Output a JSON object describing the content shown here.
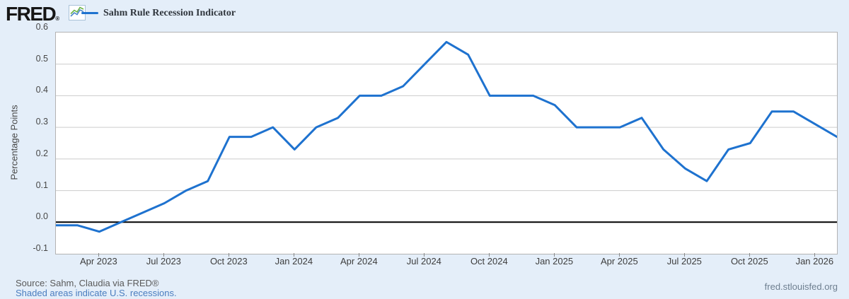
{
  "header": {
    "logo_text": "FRED",
    "logo_reg": "®",
    "legend_label": "Sahm Rule Recession Indicator"
  },
  "chart_data": {
    "type": "line",
    "title": "Sahm Rule Recession Indicator",
    "ylabel": "Percentage Points",
    "ylim": [
      -0.1,
      0.6
    ],
    "grid": "horizontal",
    "legend_position": "top-left",
    "series_color": "#1e72cf",
    "zero_line_color": "#000000",
    "categories": [
      "Feb 2023",
      "Mar 2023",
      "Apr 2023",
      "May 2023",
      "Jun 2023",
      "Jul 2023",
      "Aug 2023",
      "Sep 2023",
      "Oct 2023",
      "Nov 2023",
      "Dec 2023",
      "Jan 2024",
      "Feb 2024",
      "Mar 2024",
      "Apr 2024",
      "May 2024",
      "Jun 2024",
      "Jul 2024",
      "Aug 2024",
      "Sep 2024",
      "Oct 2024",
      "Nov 2024",
      "Dec 2024",
      "Jan 2025",
      "Feb 2025",
      "Mar 2025",
      "Apr 2025",
      "May 2025",
      "Jun 2025",
      "Jul 2025",
      "Aug 2025",
      "Sep 2025",
      "Oct 2025",
      "Nov 2025",
      "Dec 2025",
      "Jan 2026",
      "Feb 2026"
    ],
    "values": [
      -0.01,
      -0.01,
      -0.03,
      0.0,
      0.03,
      0.06,
      0.1,
      0.13,
      0.27,
      0.27,
      0.3,
      0.23,
      0.3,
      0.33,
      0.4,
      0.4,
      0.43,
      0.5,
      0.57,
      0.53,
      0.4,
      0.4,
      0.4,
      0.37,
      0.3,
      0.3,
      0.3,
      0.33,
      0.23,
      0.17,
      0.13,
      0.23,
      0.25,
      0.35,
      0.35,
      0.31,
      0.27
    ],
    "yticks": [
      {
        "label": "0.6",
        "value": 0.6
      },
      {
        "label": "0.5",
        "value": 0.5
      },
      {
        "label": "0.4",
        "value": 0.4
      },
      {
        "label": "0.3",
        "value": 0.3
      },
      {
        "label": "0.2",
        "value": 0.2
      },
      {
        "label": "0.1",
        "value": 0.1
      },
      {
        "label": "0.0",
        "value": 0.0
      },
      {
        "label": "-0.1",
        "value": -0.1
      }
    ],
    "xticks": [
      {
        "label": "Apr 2023",
        "month_index": 2
      },
      {
        "label": "Jul 2023",
        "month_index": 5
      },
      {
        "label": "Oct 2023",
        "month_index": 8
      },
      {
        "label": "Jan 2024",
        "month_index": 11
      },
      {
        "label": "Apr 2024",
        "month_index": 14
      },
      {
        "label": "Jul 2024",
        "month_index": 17
      },
      {
        "label": "Oct 2024",
        "month_index": 20
      },
      {
        "label": "Jan 2025",
        "month_index": 23
      },
      {
        "label": "Apr 2025",
        "month_index": 26
      },
      {
        "label": "Jul 2025",
        "month_index": 29
      },
      {
        "label": "Oct 2025",
        "month_index": 32
      },
      {
        "label": "Jan 2026",
        "month_index": 35
      }
    ]
  },
  "footer": {
    "source_line": "Source: Sahm, Claudia via FRED®",
    "shaded_line": "Shaded areas indicate U.S. recessions.",
    "site": "fred.stlouisfed.org"
  }
}
